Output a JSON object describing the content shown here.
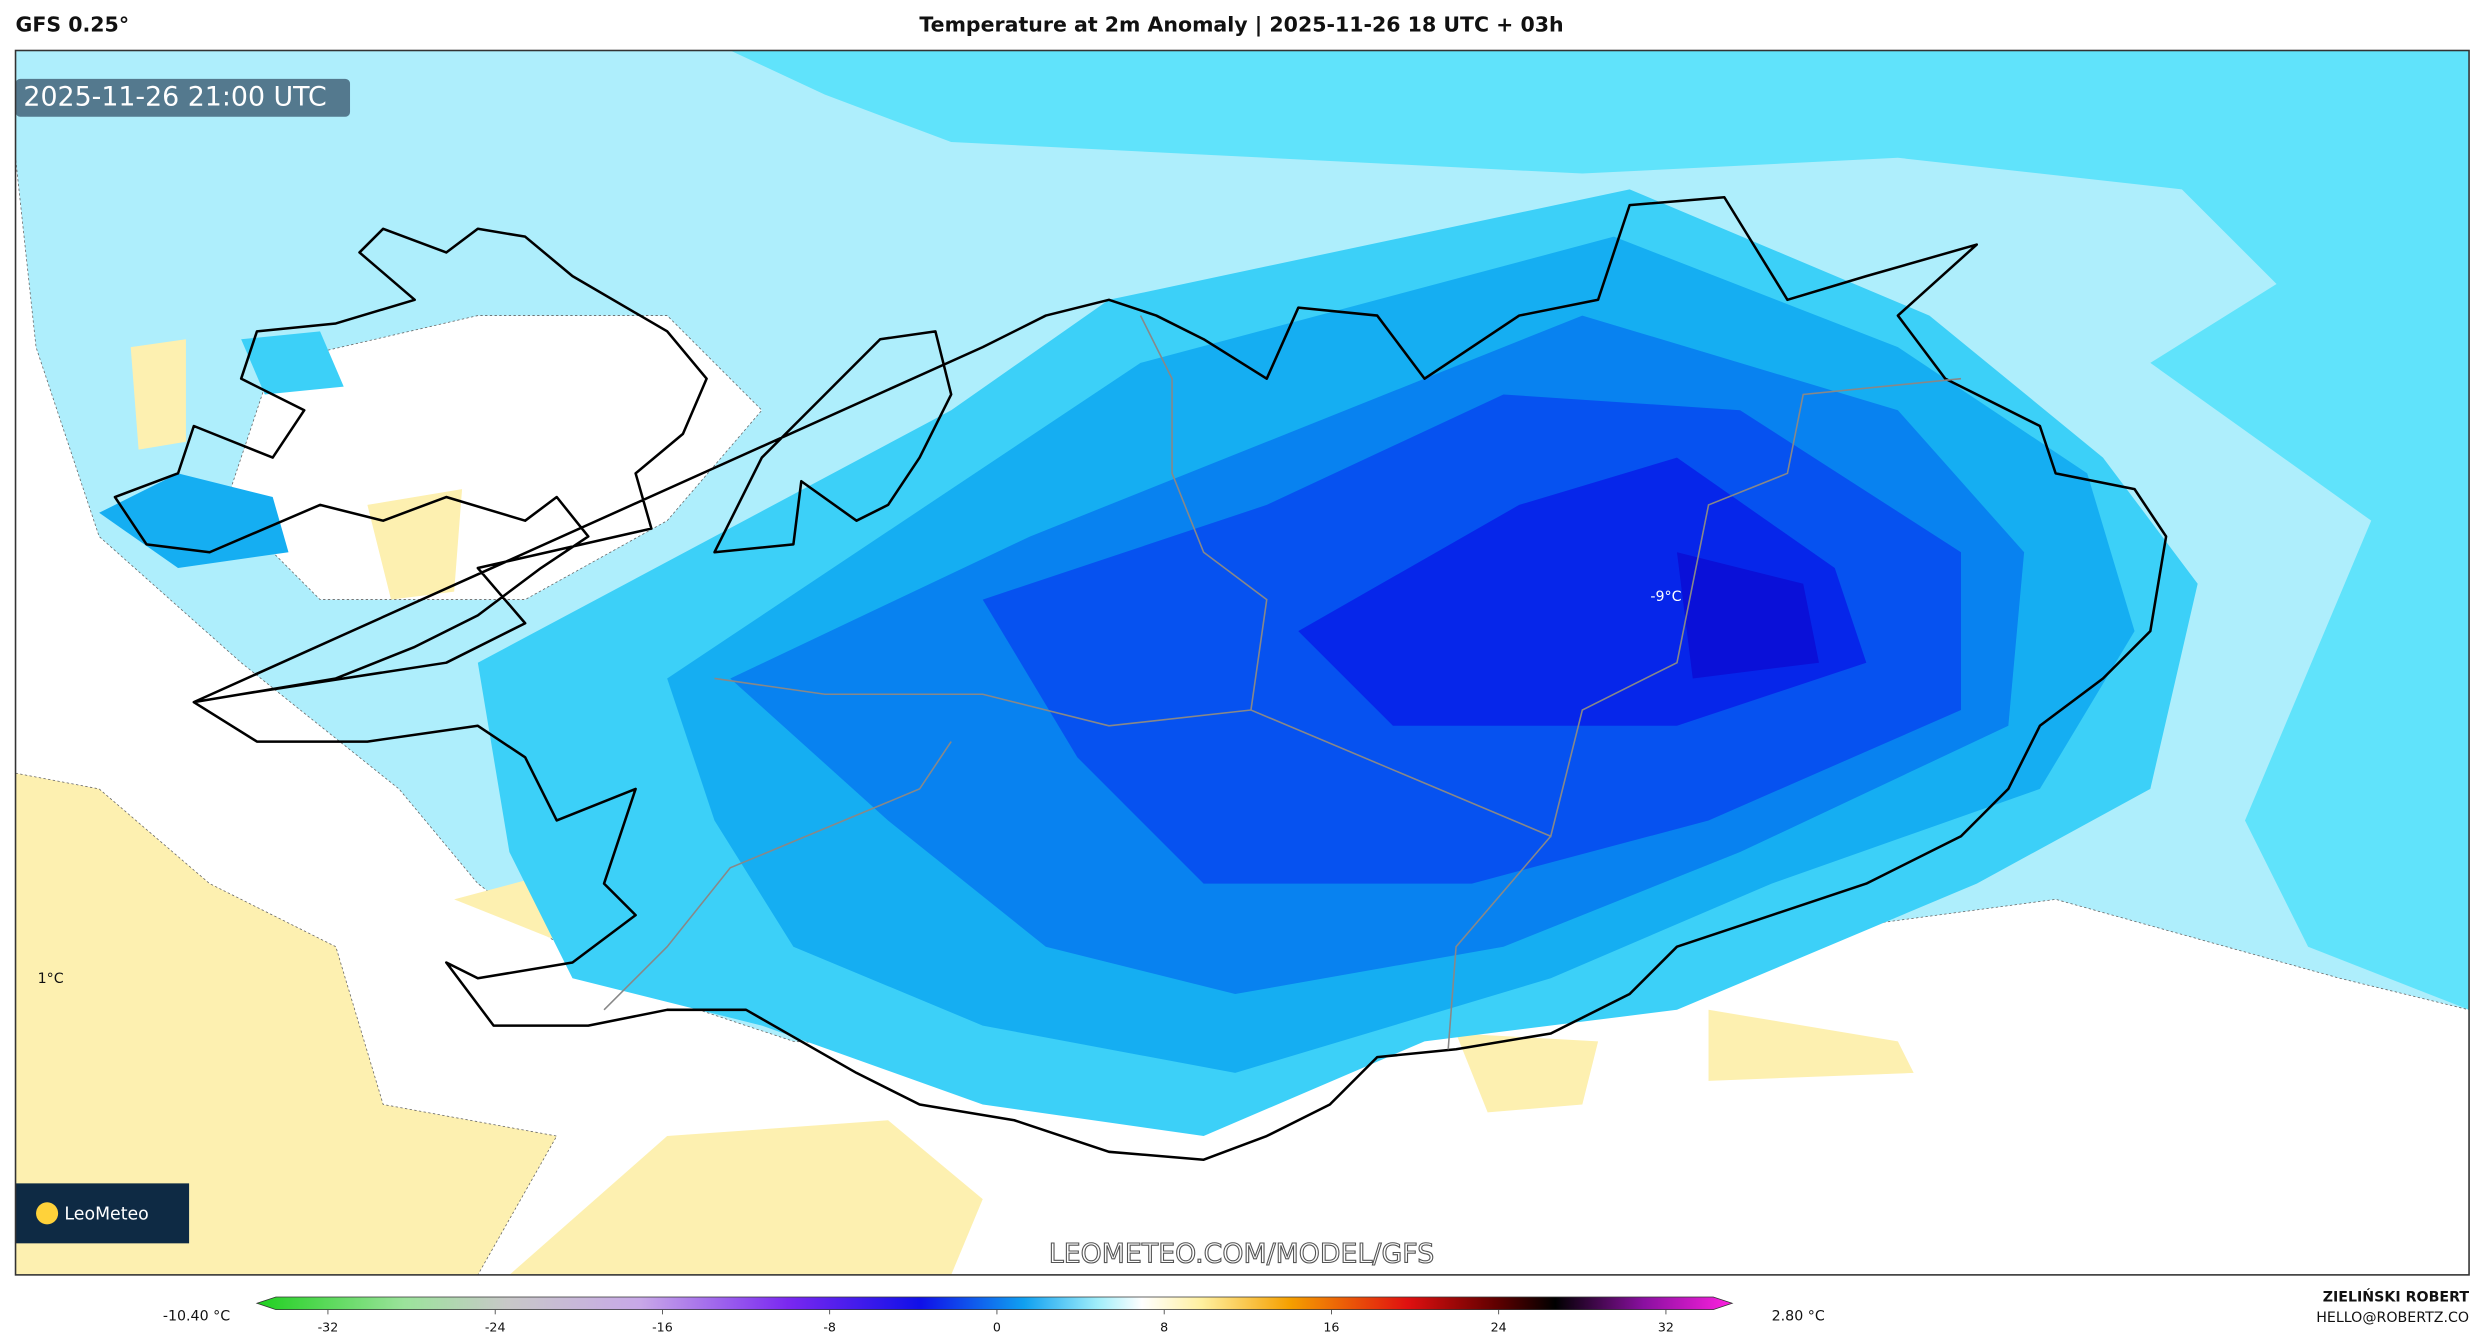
{
  "header": {
    "model": "GFS 0.25°",
    "title": "Temperature at 2m Anomaly | 2025-11-26 18 UTC + 03h"
  },
  "map": {
    "timestamp": "2025-11-26 21:00 UTC",
    "labels": [
      "-9°C",
      "1°C"
    ],
    "watermark": "LEOMETEO.COM/MODEL/GFS",
    "logo": "LeoMeteo"
  },
  "colorbar": {
    "min_label": "-10.40 °C",
    "max_label": "2.80 °C",
    "ticks": [
      -32,
      -24,
      -16,
      -8,
      0,
      8,
      16,
      24,
      32
    ]
  },
  "credits": {
    "author": "ZIELIŃSKI ROBERT",
    "contact": "HELLO@ROBERTZ.CO"
  }
}
